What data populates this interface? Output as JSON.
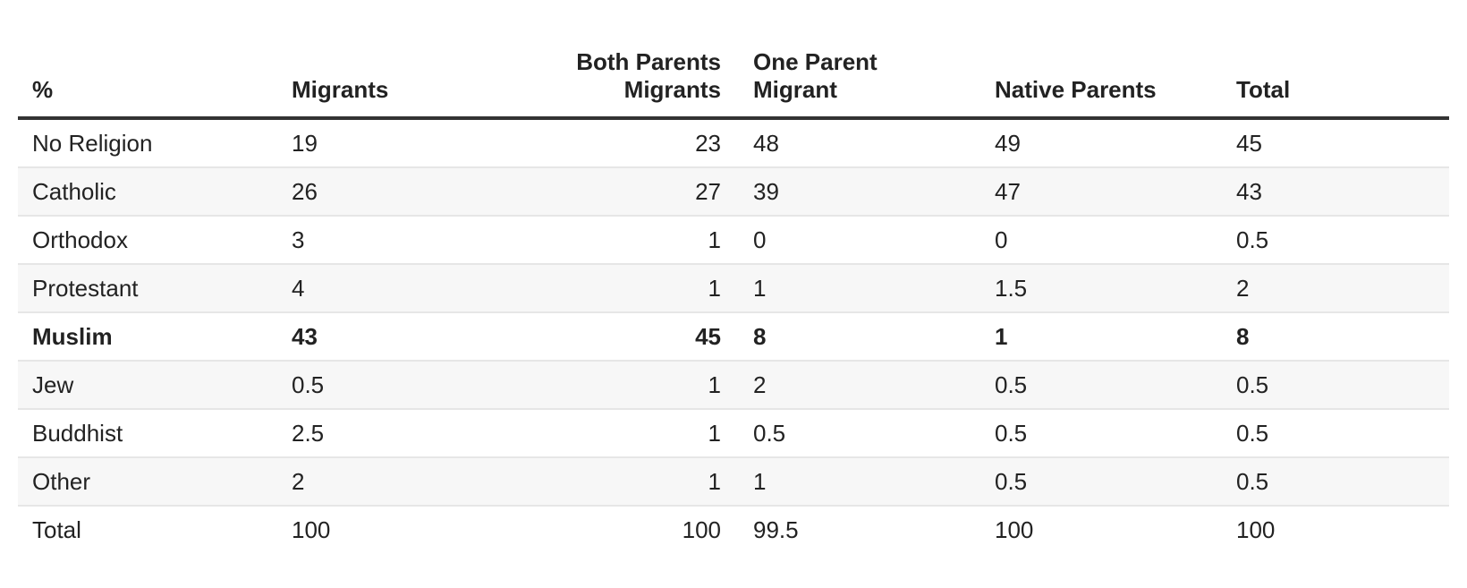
{
  "chart_data": {
    "type": "table",
    "columns": [
      "%",
      "Migrants",
      "Both Parents Migrants",
      "One Parent Migrant",
      "Native Parents",
      "Total"
    ],
    "header_lines": {
      "col0": "%",
      "col1": "Migrants",
      "col2_line1": "Both Parents",
      "col2_line2": "Migrants",
      "col3_line1": "One Parent",
      "col3_line2": "Migrant",
      "col4": "Native Parents",
      "col5": "Total"
    },
    "rows": [
      {
        "label": "No Religion",
        "values": [
          "19",
          "23",
          "48",
          "49",
          "45"
        ],
        "bold": false
      },
      {
        "label": "Catholic",
        "values": [
          "26",
          "27",
          "39",
          "47",
          "43"
        ],
        "bold": false
      },
      {
        "label": "Orthodox",
        "values": [
          "3",
          "1",
          "0",
          "0",
          "0.5"
        ],
        "bold": false
      },
      {
        "label": "Protestant",
        "values": [
          "4",
          "1",
          "1",
          "1.5",
          "2"
        ],
        "bold": false
      },
      {
        "label": "Muslim",
        "values": [
          "43",
          "45",
          "8",
          "1",
          "8"
        ],
        "bold": true
      },
      {
        "label": "Jew",
        "values": [
          "0.5",
          "1",
          "2",
          "0.5",
          "0.5"
        ],
        "bold": false
      },
      {
        "label": "Buddhist",
        "values": [
          "2.5",
          "1",
          "0.5",
          "0.5",
          "0.5"
        ],
        "bold": false
      },
      {
        "label": "Other",
        "values": [
          "2",
          "1",
          "1",
          "0.5",
          "0.5"
        ],
        "bold": false
      },
      {
        "label": "Total",
        "values": [
          "100",
          "100",
          "99.5",
          "100",
          "100"
        ],
        "bold": false
      }
    ],
    "colors": {
      "header_rule": "#333333",
      "row_divider": "#e6e6e6",
      "stripe": "#f7f7f7",
      "text": "#222222"
    }
  }
}
